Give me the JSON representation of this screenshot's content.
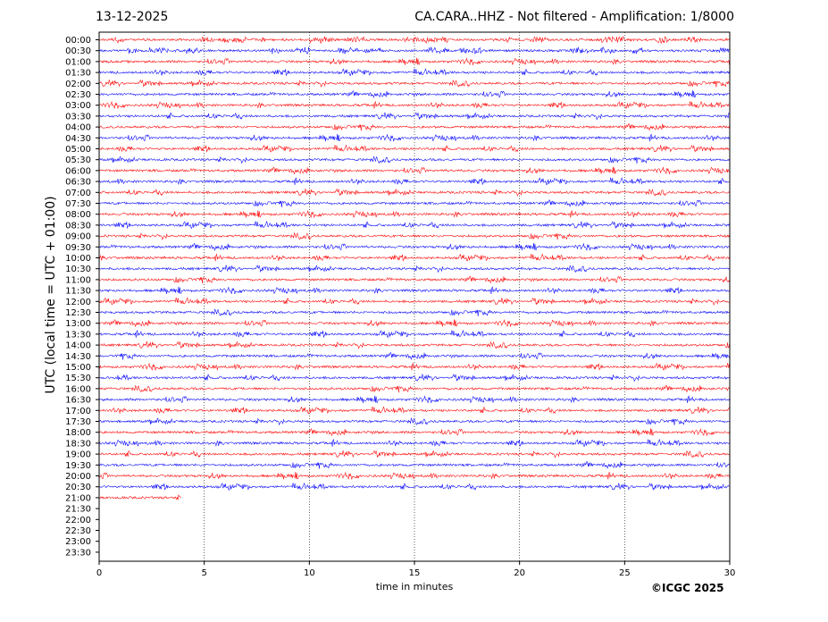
{
  "header": {
    "date": "13-12-2025",
    "title": "CA.CARA..HHZ - Not filtered - Amplification: 1/8000"
  },
  "footer": {
    "copyright": "©ICGC 2025"
  },
  "chart_data": {
    "type": "line",
    "xlabel": "time in minutes",
    "ylabel": "UTC (local time = UTC + 01:00)",
    "xlim": [
      0,
      30
    ],
    "x_ticks": [
      0,
      5,
      10,
      15,
      20,
      25,
      30
    ],
    "x_gridlines": [
      5,
      10,
      15,
      20,
      25
    ],
    "grid": "vertical dotted",
    "y_tick_labels": [
      "00:00",
      "00:30",
      "01:00",
      "01:30",
      "02:00",
      "02:30",
      "03:00",
      "03:30",
      "04:00",
      "04:30",
      "05:00",
      "05:30",
      "06:00",
      "06:30",
      "07:00",
      "07:30",
      "08:00",
      "08:30",
      "09:00",
      "09:30",
      "10:00",
      "10:30",
      "11:00",
      "11:30",
      "12:00",
      "12:30",
      "13:00",
      "13:30",
      "14:00",
      "14:30",
      "15:00",
      "15:30",
      "16:00",
      "16:30",
      "17:00",
      "17:30",
      "18:00",
      "18:30",
      "19:00",
      "19:30",
      "20:00",
      "20:30",
      "21:00",
      "21:30",
      "22:00",
      "22:30",
      "23:00",
      "23:30"
    ],
    "trace_colors": [
      "#ff0000",
      "#0000ff"
    ],
    "trace_end_minutes": [
      30,
      30,
      30,
      30,
      30,
      30,
      30,
      30,
      30,
      30,
      30,
      30,
      30,
      30,
      30,
      30,
      30,
      30,
      30,
      30,
      30,
      30,
      30,
      30,
      30,
      30,
      30,
      30,
      30,
      30,
      30,
      30,
      30,
      30,
      30,
      30,
      30,
      30,
      30,
      30,
      30,
      30,
      3.9,
      0,
      0,
      0,
      0,
      0
    ]
  }
}
